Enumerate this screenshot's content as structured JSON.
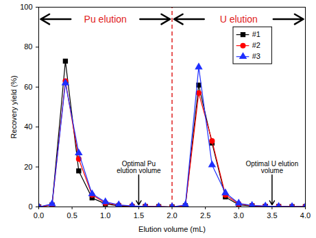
{
  "chart_data": {
    "type": "line",
    "xlabel": "Elution volume (mL)",
    "ylabel": "Recovery yield (%)",
    "x": [
      0.0,
      0.2,
      0.4,
      0.6,
      0.8,
      1.0,
      1.2,
      1.4,
      1.6,
      1.8,
      2.0,
      2.2,
      2.4,
      2.6,
      2.8,
      3.0,
      3.2,
      3.4,
      3.6,
      3.8,
      4.0
    ],
    "series": [
      {
        "name": "#1",
        "color": "#000000",
        "marker": "square",
        "values": [
          0,
          1,
          73,
          18,
          4.5,
          1.5,
          0.5,
          0.3,
          0.2,
          0.1,
          0,
          0.5,
          61,
          32,
          5,
          1,
          0.5,
          0.3,
          0.2,
          0.1,
          0.1
        ]
      },
      {
        "name": "#2",
        "color": "#ff0000",
        "marker": "circle",
        "values": [
          0,
          1,
          63,
          24,
          6,
          2,
          0.8,
          0.4,
          0.2,
          0.1,
          0,
          0.5,
          57,
          33,
          6,
          1.5,
          0.6,
          0.3,
          0.2,
          0.1,
          0.1
        ]
      },
      {
        "name": "#3",
        "color": "#1f2fff",
        "marker": "triangle",
        "values": [
          0,
          1.5,
          62,
          27,
          6.5,
          2.5,
          1,
          0.5,
          0.2,
          0.1,
          0,
          1,
          70,
          21,
          7,
          1.8,
          0.7,
          0.4,
          0.2,
          0.1,
          0.1
        ]
      }
    ],
    "xlim": [
      0,
      4
    ],
    "ylim": [
      0,
      100
    ],
    "xticks": [
      {
        "value": 0,
        "label": "0.0"
      },
      {
        "value": 0.5,
        "label": "0.5"
      },
      {
        "value": 1,
        "label": "1.0"
      },
      {
        "value": 1.5,
        "label": "1.5"
      },
      {
        "value": 2,
        "label": "2.0"
      },
      {
        "value": 2.5,
        "label": "2.5"
      },
      {
        "value": 3,
        "label": "3.0"
      },
      {
        "value": 3.5,
        "label": "3.5"
      },
      {
        "value": 4,
        "label": "4.0"
      }
    ],
    "yticks": [
      0,
      20,
      40,
      60,
      80,
      100
    ],
    "grid": false,
    "legend": "upper right",
    "regions": [
      {
        "label": "Pu elution",
        "xlim": [
          0,
          2
        ],
        "color": "#e02020"
      },
      {
        "label": "U elution",
        "xlim": [
          2,
          4
        ],
        "color": "#e02020"
      }
    ],
    "divider": {
      "x": 2.0,
      "color": "#e02020",
      "line_style": "dashed"
    },
    "annotations": [
      {
        "text": "Optimal Pu elution volume",
        "x": 1.5
      },
      {
        "text": "Optimal U elution volume",
        "x": 3.5
      }
    ]
  }
}
